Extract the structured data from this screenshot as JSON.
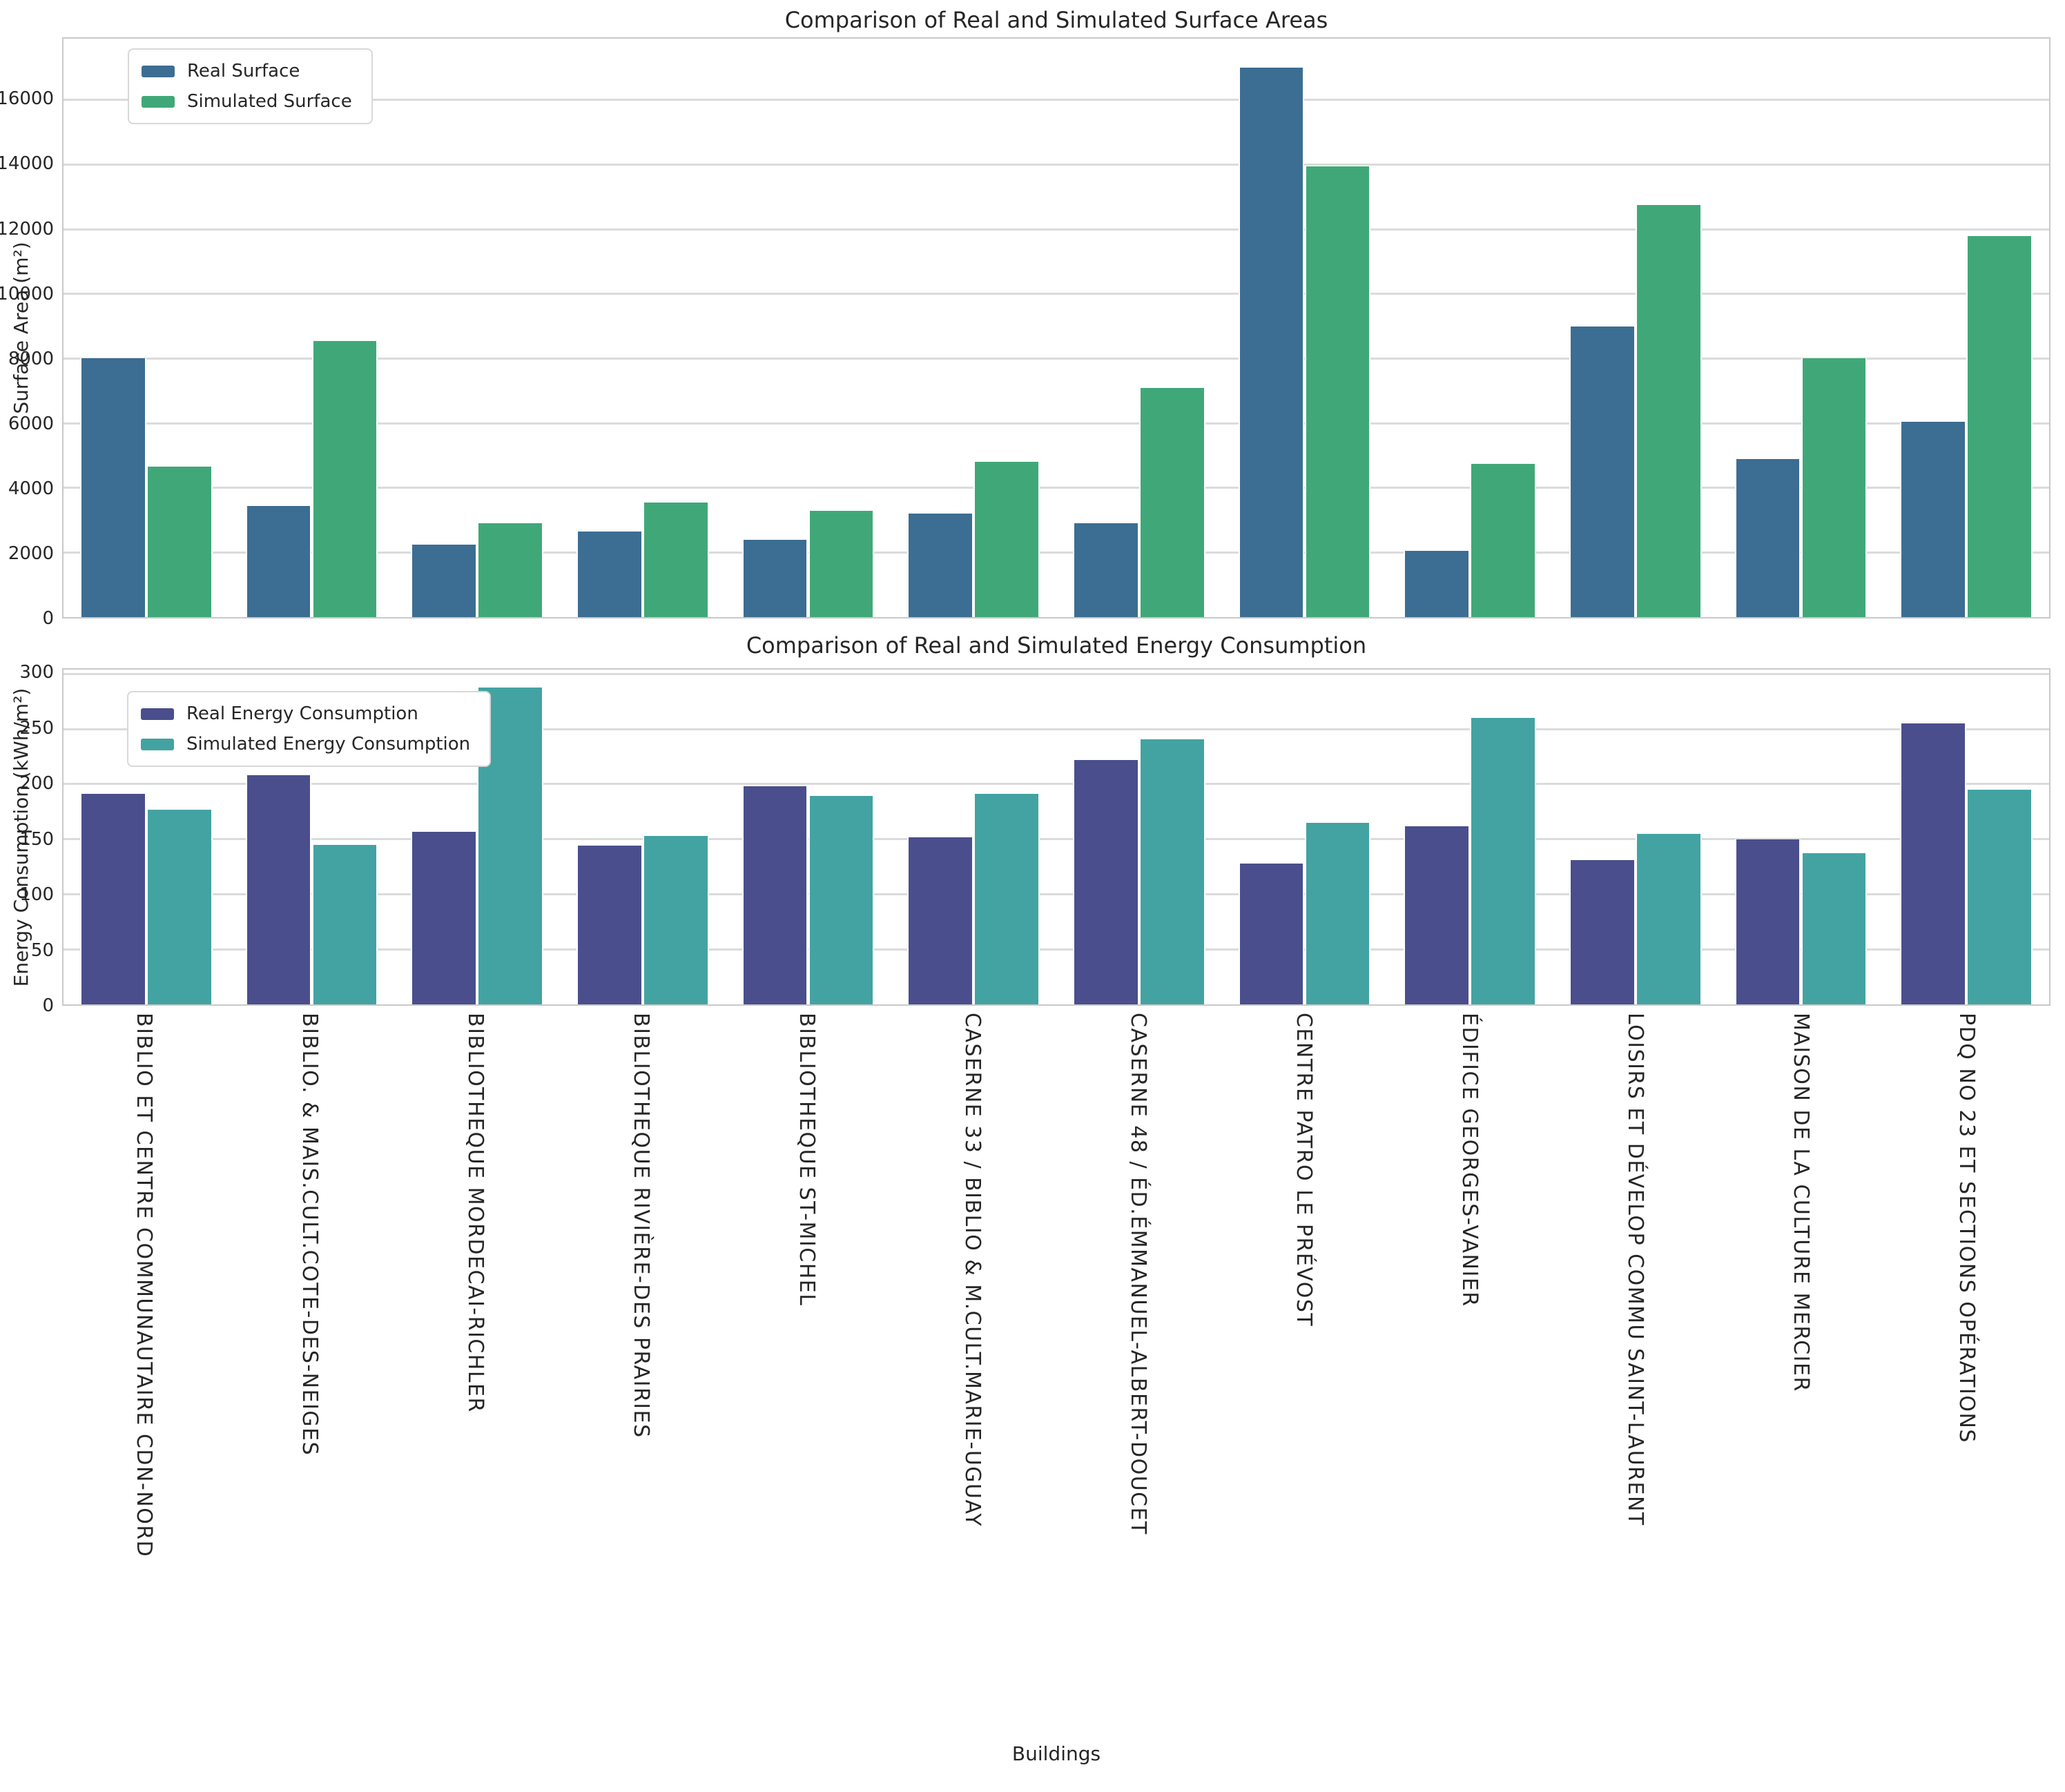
{
  "figure": {
    "xlabel": "Buildings"
  },
  "chart_data": [
    {
      "type": "bar",
      "title": "Comparison of Real and Simulated Surface Areas",
      "ylabel": "Surface Area (m²)",
      "xlabel": "",
      "ylim": [
        0,
        17900
      ],
      "yticks": [
        0,
        2000,
        4000,
        6000,
        8000,
        10000,
        12000,
        14000,
        16000
      ],
      "grid": true,
      "legend_position": "upper left",
      "show_xticklabels": false,
      "categories": [
        "BIBLIO ET CENTRE COMMUNAUTAIRE CDN-NORD",
        "BIBLIO. & MAIS.CULT.COTE-DES-NEIGES",
        "BIBLIOTHEQUE MORDECAI-RICHLER",
        "BIBLIOTHEQUE RIVIÈRE-DES PRAIRIES",
        "BIBLIOTHEQUE ST-MICHEL",
        "CASERNE 33 / BIBLIO & M.CULT.MARIE-UGUAY",
        "CASERNE 48 / ÉD.ÉMMANUEL-ALBERT-DOUCET",
        "CENTRE PATRO LE PRÉVOST",
        "ÉDIFICE GEORGES-VANIER",
        "LOISIRS ET DÉVELOP COMMU SAINT-LAURENT",
        "MAISON DE LA CULTURE MERCIER",
        "PDQ NO 23 ET SECTIONS OPÉRATIONS"
      ],
      "series": [
        {
          "name": "Real Surface",
          "color": "#3c6d92",
          "values": [
            8000,
            3450,
            2250,
            2650,
            2400,
            3200,
            2900,
            17000,
            2050,
            9000,
            4900,
            6050
          ]
        },
        {
          "name": "Simulated Surface",
          "color": "#40a878",
          "values": [
            4650,
            8550,
            2900,
            3550,
            3300,
            4800,
            7100,
            13950,
            4750,
            12750,
            8000,
            11800
          ]
        }
      ]
    },
    {
      "type": "bar",
      "title": "Comparison of Real and Simulated Energy Consumption",
      "ylabel": "Energy Consumption (kWh/m²)",
      "xlabel": "Buildings",
      "ylim": [
        0,
        304
      ],
      "yticks": [
        0,
        50,
        100,
        150,
        200,
        250,
        300
      ],
      "grid": true,
      "legend_position": "upper left",
      "show_xticklabels": true,
      "categories": [
        "BIBLIO ET CENTRE COMMUNAUTAIRE CDN-NORD",
        "BIBLIO. & MAIS.CULT.COTE-DES-NEIGES",
        "BIBLIOTHEQUE MORDECAI-RICHLER",
        "BIBLIOTHEQUE RIVIÈRE-DES PRAIRIES",
        "BIBLIOTHEQUE ST-MICHEL",
        "CASERNE 33 / BIBLIO & M.CULT.MARIE-UGUAY",
        "CASERNE 48 / ÉD.ÉMMANUEL-ALBERT-DOUCET",
        "CENTRE PATRO LE PRÉVOST",
        "ÉDIFICE GEORGES-VANIER",
        "LOISIRS ET DÉVELOP COMMU SAINT-LAURENT",
        "MAISON DE LA CULTURE MERCIER",
        "PDQ NO 23 ET SECTIONS OPÉRATIONS"
      ],
      "series": [
        {
          "name": "Real Energy Consumption",
          "color": "#4a4e8c",
          "values": [
            191,
            208,
            157,
            144,
            198,
            152,
            222,
            128,
            162,
            131,
            150,
            255
          ]
        },
        {
          "name": "Simulated Energy Consumption",
          "color": "#43a3a2",
          "values": [
            177,
            145,
            288,
            153,
            189,
            191,
            241,
            165,
            260,
            155,
            137,
            195
          ]
        }
      ]
    }
  ]
}
